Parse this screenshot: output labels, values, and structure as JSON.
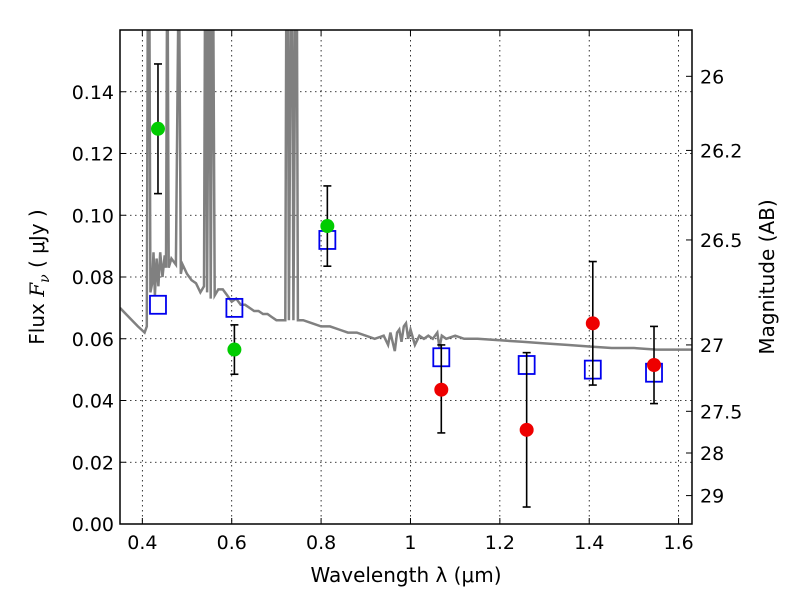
{
  "chart_data": {
    "type": "scatter",
    "xlabel": "Wavelength  λ (μm)",
    "ylabel": {
      "prefix": "Flux ",
      "math": "F",
      "sub": "ν",
      "suffix": "  ( μJy )"
    },
    "y2label": "Magnitude (AB)",
    "xlim": [
      0.35,
      1.63
    ],
    "ylim": [
      0.0,
      0.16
    ],
    "x_ticks": [
      0.4,
      0.6,
      0.8,
      1.0,
      1.2,
      1.4,
      1.6
    ],
    "x_tick_labels": [
      "0.4",
      "0.6",
      "0.8",
      "1",
      "1.2",
      "1.4",
      "1.6"
    ],
    "y_ticks": [
      0.0,
      0.02,
      0.04,
      0.06,
      0.08,
      0.1,
      0.12,
      0.14
    ],
    "y_tick_labels": [
      "0.00",
      "0.02",
      "0.04",
      "0.06",
      "0.08",
      "0.10",
      "0.12",
      "0.14"
    ],
    "y2_ticks": [
      {
        "label": "26",
        "flux": 0.145
      },
      {
        "label": "26.2",
        "flux": 0.121
      },
      {
        "label": "26.5",
        "flux": 0.092
      },
      {
        "label": "27",
        "flux": 0.058
      },
      {
        "label": "27.5",
        "flux": 0.0365
      },
      {
        "label": "28",
        "flux": 0.023
      },
      {
        "label": "29",
        "flux": 0.0092
      }
    ],
    "grid": true,
    "colors": {
      "green": "#00cc00",
      "red": "#ee0000",
      "model": "#808080",
      "box": "#0000ee"
    },
    "measured_points": [
      {
        "x": 0.435,
        "y": 0.128,
        "yerr_low": 0.107,
        "yerr_high": 0.149,
        "color": "green"
      },
      {
        "x": 0.606,
        "y": 0.0565,
        "yerr_low": 0.0485,
        "yerr_high": 0.0645,
        "color": "green"
      },
      {
        "x": 0.814,
        "y": 0.0965,
        "yerr_low": 0.0835,
        "yerr_high": 0.1095,
        "color": "green"
      },
      {
        "x": 1.069,
        "y": 0.0435,
        "yerr_low": 0.0295,
        "yerr_high": 0.058,
        "color": "red"
      },
      {
        "x": 1.26,
        "y": 0.0305,
        "yerr_low": 0.0055,
        "yerr_high": 0.0555,
        "color": "red"
      },
      {
        "x": 1.408,
        "y": 0.065,
        "yerr_low": 0.045,
        "yerr_high": 0.085,
        "color": "red"
      },
      {
        "x": 1.545,
        "y": 0.0515,
        "yerr_low": 0.039,
        "yerr_high": 0.064,
        "color": "red"
      }
    ],
    "model_points": [
      {
        "x": 0.435,
        "y": 0.071
      },
      {
        "x": 0.606,
        "y": 0.07
      },
      {
        "x": 0.814,
        "y": 0.092
      },
      {
        "x": 1.069,
        "y": 0.054
      },
      {
        "x": 1.26,
        "y": 0.0515
      },
      {
        "x": 1.408,
        "y": 0.05
      },
      {
        "x": 1.545,
        "y": 0.049
      }
    ],
    "model_spectrum": [
      [
        0.35,
        0.07
      ],
      [
        0.37,
        0.067
      ],
      [
        0.39,
        0.064
      ],
      [
        0.405,
        0.062
      ],
      [
        0.41,
        0.064
      ],
      [
        0.412,
        0.16
      ],
      [
        0.416,
        0.16
      ],
      [
        0.418,
        0.075
      ],
      [
        0.422,
        0.078
      ],
      [
        0.425,
        0.088
      ],
      [
        0.428,
        0.074
      ],
      [
        0.432,
        0.086
      ],
      [
        0.436,
        0.077
      ],
      [
        0.44,
        0.088
      ],
      [
        0.445,
        0.08
      ],
      [
        0.45,
        0.087
      ],
      [
        0.453,
        0.083
      ],
      [
        0.455,
        0.16
      ],
      [
        0.457,
        0.16
      ],
      [
        0.459,
        0.083
      ],
      [
        0.465,
        0.086
      ],
      [
        0.475,
        0.084
      ],
      [
        0.48,
        0.16
      ],
      [
        0.483,
        0.16
      ],
      [
        0.486,
        0.081
      ],
      [
        0.49,
        0.084
      ],
      [
        0.5,
        0.081
      ],
      [
        0.51,
        0.079
      ],
      [
        0.52,
        0.078
      ],
      [
        0.53,
        0.075
      ],
      [
        0.538,
        0.077
      ],
      [
        0.54,
        0.16
      ],
      [
        0.543,
        0.16
      ],
      [
        0.545,
        0.075
      ],
      [
        0.548,
        0.16
      ],
      [
        0.551,
        0.16
      ],
      [
        0.553,
        0.073
      ],
      [
        0.556,
        0.16
      ],
      [
        0.559,
        0.16
      ],
      [
        0.562,
        0.074
      ],
      [
        0.57,
        0.076
      ],
      [
        0.58,
        0.076
      ],
      [
        0.59,
        0.074
      ],
      [
        0.6,
        0.072
      ],
      [
        0.61,
        0.073
      ],
      [
        0.62,
        0.071
      ],
      [
        0.63,
        0.071
      ],
      [
        0.64,
        0.07
      ],
      [
        0.65,
        0.069
      ],
      [
        0.66,
        0.069
      ],
      [
        0.67,
        0.068
      ],
      [
        0.68,
        0.068
      ],
      [
        0.69,
        0.067
      ],
      [
        0.7,
        0.066
      ],
      [
        0.72,
        0.066
      ],
      [
        0.722,
        0.16
      ],
      [
        0.726,
        0.16
      ],
      [
        0.728,
        0.066
      ],
      [
        0.732,
        0.16
      ],
      [
        0.736,
        0.16
      ],
      [
        0.738,
        0.066
      ],
      [
        0.742,
        0.16
      ],
      [
        0.746,
        0.16
      ],
      [
        0.748,
        0.066
      ],
      [
        0.76,
        0.066
      ],
      [
        0.78,
        0.065
      ],
      [
        0.8,
        0.064
      ],
      [
        0.82,
        0.064
      ],
      [
        0.84,
        0.063
      ],
      [
        0.86,
        0.062
      ],
      [
        0.88,
        0.062
      ],
      [
        0.9,
        0.061
      ],
      [
        0.92,
        0.06
      ],
      [
        0.94,
        0.061
      ],
      [
        0.95,
        0.058
      ],
      [
        0.955,
        0.062
      ],
      [
        0.96,
        0.059
      ],
      [
        0.965,
        0.056
      ],
      [
        0.97,
        0.062
      ],
      [
        0.975,
        0.063
      ],
      [
        0.98,
        0.059
      ],
      [
        0.985,
        0.064
      ],
      [
        0.99,
        0.065
      ],
      [
        0.995,
        0.06
      ],
      [
        1.0,
        0.063
      ],
      [
        1.01,
        0.058
      ],
      [
        1.02,
        0.061
      ],
      [
        1.03,
        0.06
      ],
      [
        1.04,
        0.061
      ],
      [
        1.05,
        0.06
      ],
      [
        1.06,
        0.062
      ],
      [
        1.065,
        0.057
      ],
      [
        1.07,
        0.061
      ],
      [
        1.08,
        0.06
      ],
      [
        1.1,
        0.061
      ],
      [
        1.12,
        0.06
      ],
      [
        1.15,
        0.06
      ],
      [
        1.2,
        0.0595
      ],
      [
        1.25,
        0.059
      ],
      [
        1.3,
        0.0585
      ],
      [
        1.35,
        0.058
      ],
      [
        1.4,
        0.0575
      ],
      [
        1.45,
        0.057
      ],
      [
        1.5,
        0.057
      ],
      [
        1.55,
        0.0565
      ],
      [
        1.6,
        0.0565
      ],
      [
        1.63,
        0.0565
      ]
    ]
  }
}
